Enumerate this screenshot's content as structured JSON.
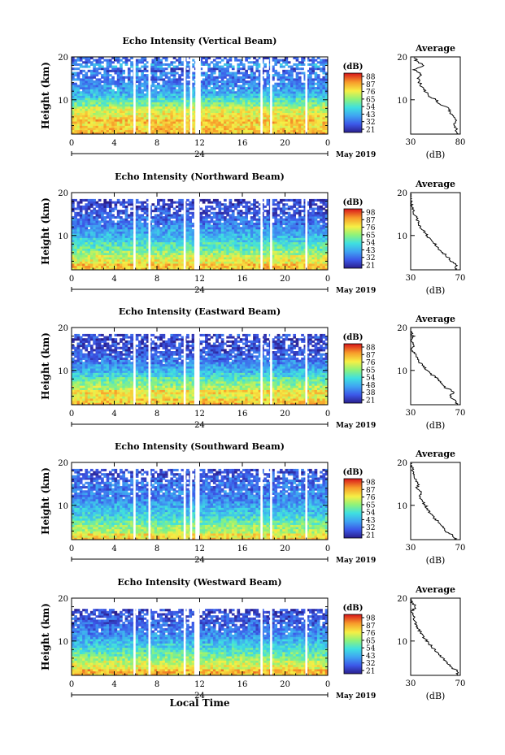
{
  "chart_data": [
    {
      "type": "heatmap",
      "title": "Echo Intensity (Vertical Beam)",
      "ylabel": "Height (km)",
      "y_ticks": [
        "20",
        "10"
      ],
      "x_ticks": [
        "0",
        "4",
        "8",
        "12",
        "16",
        "20",
        "0"
      ],
      "xlim": [
        0,
        24
      ],
      "ylim": [
        2,
        20
      ],
      "date_mid": "24",
      "date_right": "May 2019",
      "colorbar": {
        "unit": "(dB)",
        "labels": [
          "88",
          "87",
          "76",
          "65",
          "54",
          "43",
          "32",
          "21"
        ],
        "range": [
          21,
          88
        ]
      },
      "gaps_hours": [
        [
          5.8,
          6.0
        ],
        [
          7.2,
          7.4
        ],
        [
          10.5,
          10.7
        ],
        [
          11.1,
          11.3
        ],
        [
          11.6,
          12.1
        ],
        [
          17.7,
          17.9
        ],
        [
          18.6,
          18.8
        ],
        [
          21.9,
          22.1
        ]
      ],
      "top_km": 20,
      "profile": {
        "title": "Average",
        "xlabel": "(dB)",
        "x_ticks": [
          "30",
          "80"
        ],
        "xlim": [
          30,
          80
        ],
        "y_ticks": [
          "20",
          "10"
        ],
        "heights_km": [
          2,
          3,
          4,
          5,
          6,
          7,
          8,
          9,
          10,
          11,
          12,
          13,
          14,
          15,
          16,
          17,
          18,
          19,
          20
        ],
        "values_db": [
          78,
          76,
          74,
          76,
          73,
          70,
          68,
          60,
          55,
          48,
          45,
          41,
          39,
          37,
          40,
          34,
          44,
          36,
          34
        ]
      }
    },
    {
      "type": "heatmap",
      "title": "Echo Intensity (Northward Beam)",
      "ylabel": "Height (km)",
      "y_ticks": [
        "20",
        "10"
      ],
      "x_ticks": [
        "0",
        "4",
        "8",
        "12",
        "16",
        "20",
        "0"
      ],
      "xlim": [
        0,
        24
      ],
      "ylim": [
        2,
        20
      ],
      "date_mid": "24",
      "date_right": "May 2019",
      "colorbar": {
        "unit": "(dB)",
        "labels": [
          "98",
          "87",
          "76",
          "65",
          "54",
          "43",
          "32",
          "21"
        ],
        "range": [
          21,
          98
        ]
      },
      "gaps_hours": [
        [
          5.8,
          6.0
        ],
        [
          7.2,
          7.4
        ],
        [
          10.5,
          10.7
        ],
        [
          11.5,
          12.0
        ],
        [
          17.7,
          17.9
        ],
        [
          18.6,
          18.8
        ],
        [
          21.9,
          22.1
        ]
      ],
      "top_km": 18,
      "profile": {
        "title": "Average",
        "xlabel": "(dB)",
        "x_ticks": [
          "30",
          "70"
        ],
        "xlim": [
          30,
          70
        ],
        "y_ticks": [
          "20",
          "10"
        ],
        "heights_km": [
          2,
          3,
          4,
          5,
          6,
          7,
          8,
          9,
          10,
          11,
          12,
          13,
          14,
          15,
          16,
          17,
          18,
          19,
          20
        ],
        "values_db": [
          66,
          67,
          63,
          60,
          56,
          52,
          50,
          46,
          43,
          41,
          38,
          36,
          35,
          33,
          32,
          31,
          30,
          30,
          30
        ]
      }
    },
    {
      "type": "heatmap",
      "title": "Echo Intensity (Eastward Beam)",
      "ylabel": "Height (km)",
      "y_ticks": [
        "20",
        "10"
      ],
      "x_ticks": [
        "0",
        "4",
        "8",
        "12",
        "16",
        "20",
        "0"
      ],
      "xlim": [
        0,
        24
      ],
      "ylim": [
        2,
        20
      ],
      "date_mid": "24",
      "date_right": "May 2019",
      "colorbar": {
        "unit": "(dB)",
        "labels": [
          "88",
          "87",
          "76",
          "65",
          "54",
          "48",
          "38",
          "21"
        ],
        "range": [
          21,
          88
        ]
      },
      "gaps_hours": [
        [
          5.8,
          6.0
        ],
        [
          7.2,
          7.4
        ],
        [
          10.5,
          10.7
        ],
        [
          11.5,
          12.0
        ],
        [
          17.7,
          17.9
        ],
        [
          18.6,
          18.8
        ],
        [
          21.9,
          22.1
        ]
      ],
      "top_km": 18,
      "profile": {
        "title": "Average",
        "xlabel": "(dB)",
        "x_ticks": [
          "30",
          "70"
        ],
        "xlim": [
          30,
          70
        ],
        "y_ticks": [
          "20",
          "10"
        ],
        "heights_km": [
          2,
          3,
          4,
          5,
          6,
          7,
          8,
          9,
          10,
          11,
          12,
          13,
          14,
          15,
          16,
          17,
          18,
          19,
          20
        ],
        "values_db": [
          68,
          66,
          62,
          65,
          58,
          55,
          52,
          47,
          43,
          40,
          37,
          35,
          33,
          31,
          32,
          30,
          32,
          30,
          30
        ]
      }
    },
    {
      "type": "heatmap",
      "title": "Echo Intensity (Southward Beam)",
      "ylabel": "Height (km)",
      "y_ticks": [
        "20",
        "10"
      ],
      "x_ticks": [
        "0",
        "4",
        "8",
        "12",
        "16",
        "20",
        "0"
      ],
      "xlim": [
        0,
        24
      ],
      "ylim": [
        2,
        20
      ],
      "date_mid": "24",
      "date_right": "May 2019",
      "colorbar": {
        "unit": "(dB)",
        "labels": [
          "98",
          "87",
          "76",
          "65",
          "54",
          "43",
          "32",
          "21"
        ],
        "range": [
          21,
          98
        ]
      },
      "gaps_hours": [
        [
          5.8,
          6.0
        ],
        [
          7.2,
          7.4
        ],
        [
          10.5,
          10.7
        ],
        [
          11.1,
          11.3
        ],
        [
          11.6,
          12.0
        ],
        [
          17.7,
          17.9
        ],
        [
          18.6,
          18.8
        ],
        [
          21.9,
          22.1
        ]
      ],
      "top_km": 18,
      "profile": {
        "title": "Average",
        "xlabel": "(dB)",
        "x_ticks": [
          "30",
          "70"
        ],
        "xlim": [
          30,
          70
        ],
        "y_ticks": [
          "20",
          "10"
        ],
        "heights_km": [
          2,
          3,
          4,
          5,
          6,
          7,
          8,
          9,
          10,
          11,
          12,
          13,
          14,
          15,
          16,
          17,
          18,
          19,
          20
        ],
        "values_db": [
          66,
          64,
          58,
          56,
          53,
          49,
          46,
          44,
          42,
          39,
          37,
          38,
          35,
          36,
          34,
          33,
          32,
          31,
          30
        ]
      }
    },
    {
      "type": "heatmap",
      "title": "Echo Intensity (Westward Beam)",
      "ylabel": "Height (km)",
      "y_ticks": [
        "20",
        "10"
      ],
      "x_ticks": [
        "0",
        "4",
        "8",
        "12",
        "16",
        "20",
        "0"
      ],
      "xlim": [
        0,
        24
      ],
      "ylim": [
        2,
        20
      ],
      "date_mid": "24",
      "date_right": "May 2019",
      "xlabel": "Local Time",
      "colorbar": {
        "unit": "(dB)",
        "labels": [
          "98",
          "87",
          "76",
          "65",
          "54",
          "43",
          "32",
          "21"
        ],
        "range": [
          21,
          98
        ]
      },
      "gaps_hours": [
        [
          5.8,
          6.0
        ],
        [
          7.2,
          7.4
        ],
        [
          10.5,
          10.7
        ],
        [
          11.5,
          12.0
        ],
        [
          17.7,
          17.9
        ],
        [
          18.6,
          18.8
        ],
        [
          21.9,
          22.1
        ]
      ],
      "top_km": 17,
      "profile": {
        "title": "Average",
        "xlabel": "(dB)",
        "x_ticks": [
          "30",
          "70"
        ],
        "xlim": [
          30,
          70
        ],
        "y_ticks": [
          "20",
          "10"
        ],
        "heights_km": [
          2,
          3,
          4,
          5,
          6,
          7,
          8,
          9,
          10,
          11,
          12,
          13,
          14,
          15,
          16,
          17,
          18,
          19,
          20
        ],
        "values_db": [
          67,
          68,
          62,
          60,
          56,
          52,
          49,
          46,
          43,
          40,
          38,
          36,
          34,
          33,
          32,
          31,
          34,
          31,
          30
        ]
      }
    }
  ]
}
